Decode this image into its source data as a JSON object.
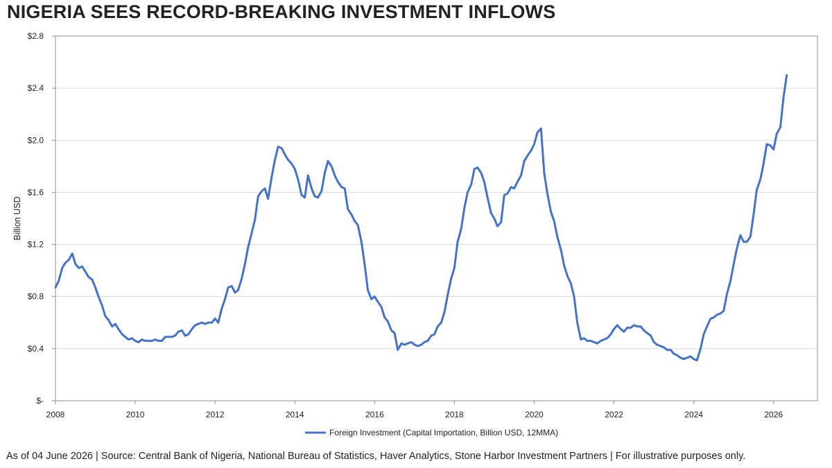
{
  "title": "NIGERIA SEES RECORD-BREAKING INVESTMENT INFLOWS",
  "footnote": "As of 04 June 2026  |  Source: Central Bank of Nigeria, National Bureau of Statistics, Haver Analytics, Stone Harbor Investment Partners  |  For illustrative purposes only.",
  "chart_data": {
    "type": "line",
    "title": "NIGERIA SEES RECORD-BREAKING INVESTMENT INFLOWS",
    "xlabel": "",
    "ylabel": "Billion USD",
    "xlim": [
      2008,
      2027.1
    ],
    "ylim": [
      0,
      2.8
    ],
    "grid": true,
    "legend_position": "bottom",
    "x_ticks": [
      2008,
      2010,
      2012,
      2014,
      2016,
      2018,
      2020,
      2022,
      2024,
      2026
    ],
    "x_tick_labels": [
      "2008",
      "2010",
      "2012",
      "2014",
      "2016",
      "2018",
      "2020",
      "2022",
      "2024",
      "2026"
    ],
    "y_ticks": [
      0,
      0.4,
      0.8,
      1.2,
      1.6,
      2.0,
      2.4,
      2.8
    ],
    "y_tick_labels": [
      "$-",
      "$0.4",
      "$0.8",
      "$1.2",
      "$1.6",
      "$2.0",
      "$2.4",
      "$2.8"
    ],
    "series": [
      {
        "name": "Foreign Investment (Capital Importation, Billion USD, 12MMA)",
        "color": "#4472C4",
        "x": [
          2008.0,
          2008.08,
          2008.17,
          2008.25,
          2008.33,
          2008.42,
          2008.5,
          2008.58,
          2008.67,
          2008.75,
          2008.83,
          2008.92,
          2009.0,
          2009.08,
          2009.17,
          2009.25,
          2009.33,
          2009.42,
          2009.5,
          2009.58,
          2009.67,
          2009.75,
          2009.83,
          2009.92,
          2010.0,
          2010.08,
          2010.17,
          2010.25,
          2010.33,
          2010.42,
          2010.5,
          2010.58,
          2010.67,
          2010.75,
          2010.83,
          2010.92,
          2011.0,
          2011.08,
          2011.17,
          2011.25,
          2011.33,
          2011.42,
          2011.5,
          2011.58,
          2011.67,
          2011.75,
          2011.83,
          2011.92,
          2012.0,
          2012.08,
          2012.17,
          2012.25,
          2012.33,
          2012.42,
          2012.5,
          2012.58,
          2012.67,
          2012.75,
          2012.83,
          2012.92,
          2013.0,
          2013.08,
          2013.17,
          2013.25,
          2013.33,
          2013.42,
          2013.5,
          2013.58,
          2013.67,
          2013.75,
          2013.83,
          2013.92,
          2014.0,
          2014.08,
          2014.17,
          2014.25,
          2014.33,
          2014.42,
          2014.5,
          2014.58,
          2014.67,
          2014.75,
          2014.83,
          2014.92,
          2015.0,
          2015.08,
          2015.17,
          2015.25,
          2015.33,
          2015.42,
          2015.5,
          2015.58,
          2015.67,
          2015.75,
          2015.83,
          2015.92,
          2016.0,
          2016.08,
          2016.17,
          2016.25,
          2016.33,
          2016.42,
          2016.5,
          2016.58,
          2016.67,
          2016.75,
          2016.83,
          2016.92,
          2017.0,
          2017.08,
          2017.17,
          2017.25,
          2017.33,
          2017.42,
          2017.5,
          2017.58,
          2017.67,
          2017.75,
          2017.83,
          2017.92,
          2018.0,
          2018.08,
          2018.17,
          2018.25,
          2018.33,
          2018.42,
          2018.5,
          2018.58,
          2018.67,
          2018.75,
          2018.83,
          2018.92,
          2019.0,
          2019.08,
          2019.17,
          2019.25,
          2019.33,
          2019.42,
          2019.5,
          2019.58,
          2019.67,
          2019.75,
          2019.83,
          2019.92,
          2020.0,
          2020.08,
          2020.17,
          2020.25,
          2020.33,
          2020.42,
          2020.5,
          2020.58,
          2020.67,
          2020.75,
          2020.83,
          2020.92,
          2021.0,
          2021.08,
          2021.17,
          2021.25,
          2021.33,
          2021.42,
          2021.5,
          2021.58,
          2021.67,
          2021.75,
          2021.83,
          2021.92,
          2022.0,
          2022.08,
          2022.17,
          2022.25,
          2022.33,
          2022.42,
          2022.5,
          2022.58,
          2022.67,
          2022.75,
          2022.83,
          2022.92,
          2023.0,
          2023.08,
          2023.17,
          2023.25,
          2023.33,
          2023.42,
          2023.5,
          2023.58,
          2023.67,
          2023.75,
          2023.83,
          2023.92,
          2024.0,
          2024.08,
          2024.17,
          2024.25,
          2024.33,
          2024.42,
          2024.5,
          2024.58,
          2024.67,
          2024.75,
          2024.83,
          2024.92,
          2025.0,
          2025.08,
          2025.17,
          2025.25,
          2025.33,
          2025.42,
          2025.5,
          2025.58,
          2025.67,
          2025.75,
          2025.83,
          2025.92,
          2026.0,
          2026.08,
          2026.17,
          2026.25,
          2026.33
        ],
        "values": [
          0.87,
          0.92,
          1.02,
          1.06,
          1.08,
          1.13,
          1.05,
          1.02,
          1.03,
          0.99,
          0.95,
          0.93,
          0.87,
          0.8,
          0.73,
          0.65,
          0.62,
          0.57,
          0.59,
          0.55,
          0.51,
          0.49,
          0.47,
          0.48,
          0.46,
          0.45,
          0.47,
          0.46,
          0.46,
          0.46,
          0.47,
          0.46,
          0.46,
          0.49,
          0.49,
          0.49,
          0.5,
          0.53,
          0.54,
          0.5,
          0.51,
          0.55,
          0.58,
          0.59,
          0.6,
          0.59,
          0.6,
          0.6,
          0.63,
          0.6,
          0.71,
          0.78,
          0.87,
          0.88,
          0.83,
          0.85,
          0.94,
          1.05,
          1.18,
          1.29,
          1.39,
          1.57,
          1.61,
          1.63,
          1.55,
          1.72,
          1.85,
          1.95,
          1.94,
          1.89,
          1.85,
          1.82,
          1.78,
          1.7,
          1.58,
          1.56,
          1.73,
          1.63,
          1.57,
          1.56,
          1.61,
          1.75,
          1.84,
          1.8,
          1.73,
          1.68,
          1.64,
          1.63,
          1.47,
          1.43,
          1.38,
          1.35,
          1.22,
          1.05,
          0.85,
          0.78,
          0.8,
          0.76,
          0.72,
          0.64,
          0.61,
          0.54,
          0.52,
          0.39,
          0.44,
          0.43,
          0.44,
          0.45,
          0.43,
          0.42,
          0.43,
          0.45,
          0.46,
          0.5,
          0.51,
          0.57,
          0.6,
          0.68,
          0.81,
          0.94,
          1.02,
          1.22,
          1.32,
          1.48,
          1.6,
          1.66,
          1.78,
          1.79,
          1.75,
          1.68,
          1.56,
          1.44,
          1.4,
          1.34,
          1.37,
          1.58,
          1.59,
          1.64,
          1.63,
          1.68,
          1.73,
          1.84,
          1.88,
          1.92,
          1.97,
          2.06,
          2.09,
          1.75,
          1.59,
          1.45,
          1.38,
          1.26,
          1.16,
          1.04,
          0.96,
          0.9,
          0.8,
          0.6,
          0.47,
          0.48,
          0.46,
          0.46,
          0.45,
          0.44,
          0.46,
          0.47,
          0.48,
          0.51,
          0.55,
          0.58,
          0.55,
          0.53,
          0.56,
          0.56,
          0.58,
          0.57,
          0.57,
          0.54,
          0.52,
          0.5,
          0.45,
          0.43,
          0.42,
          0.41,
          0.39,
          0.39,
          0.36,
          0.35,
          0.33,
          0.32,
          0.33,
          0.34,
          0.32,
          0.31,
          0.4,
          0.51,
          0.57,
          0.63,
          0.64,
          0.66,
          0.67,
          0.69,
          0.82,
          0.92,
          1.05,
          1.17,
          1.27,
          1.22,
          1.22,
          1.26,
          1.43,
          1.62,
          1.7,
          1.82,
          1.97,
          1.96,
          1.93,
          2.05,
          2.1,
          2.33,
          2.5
        ]
      }
    ]
  }
}
